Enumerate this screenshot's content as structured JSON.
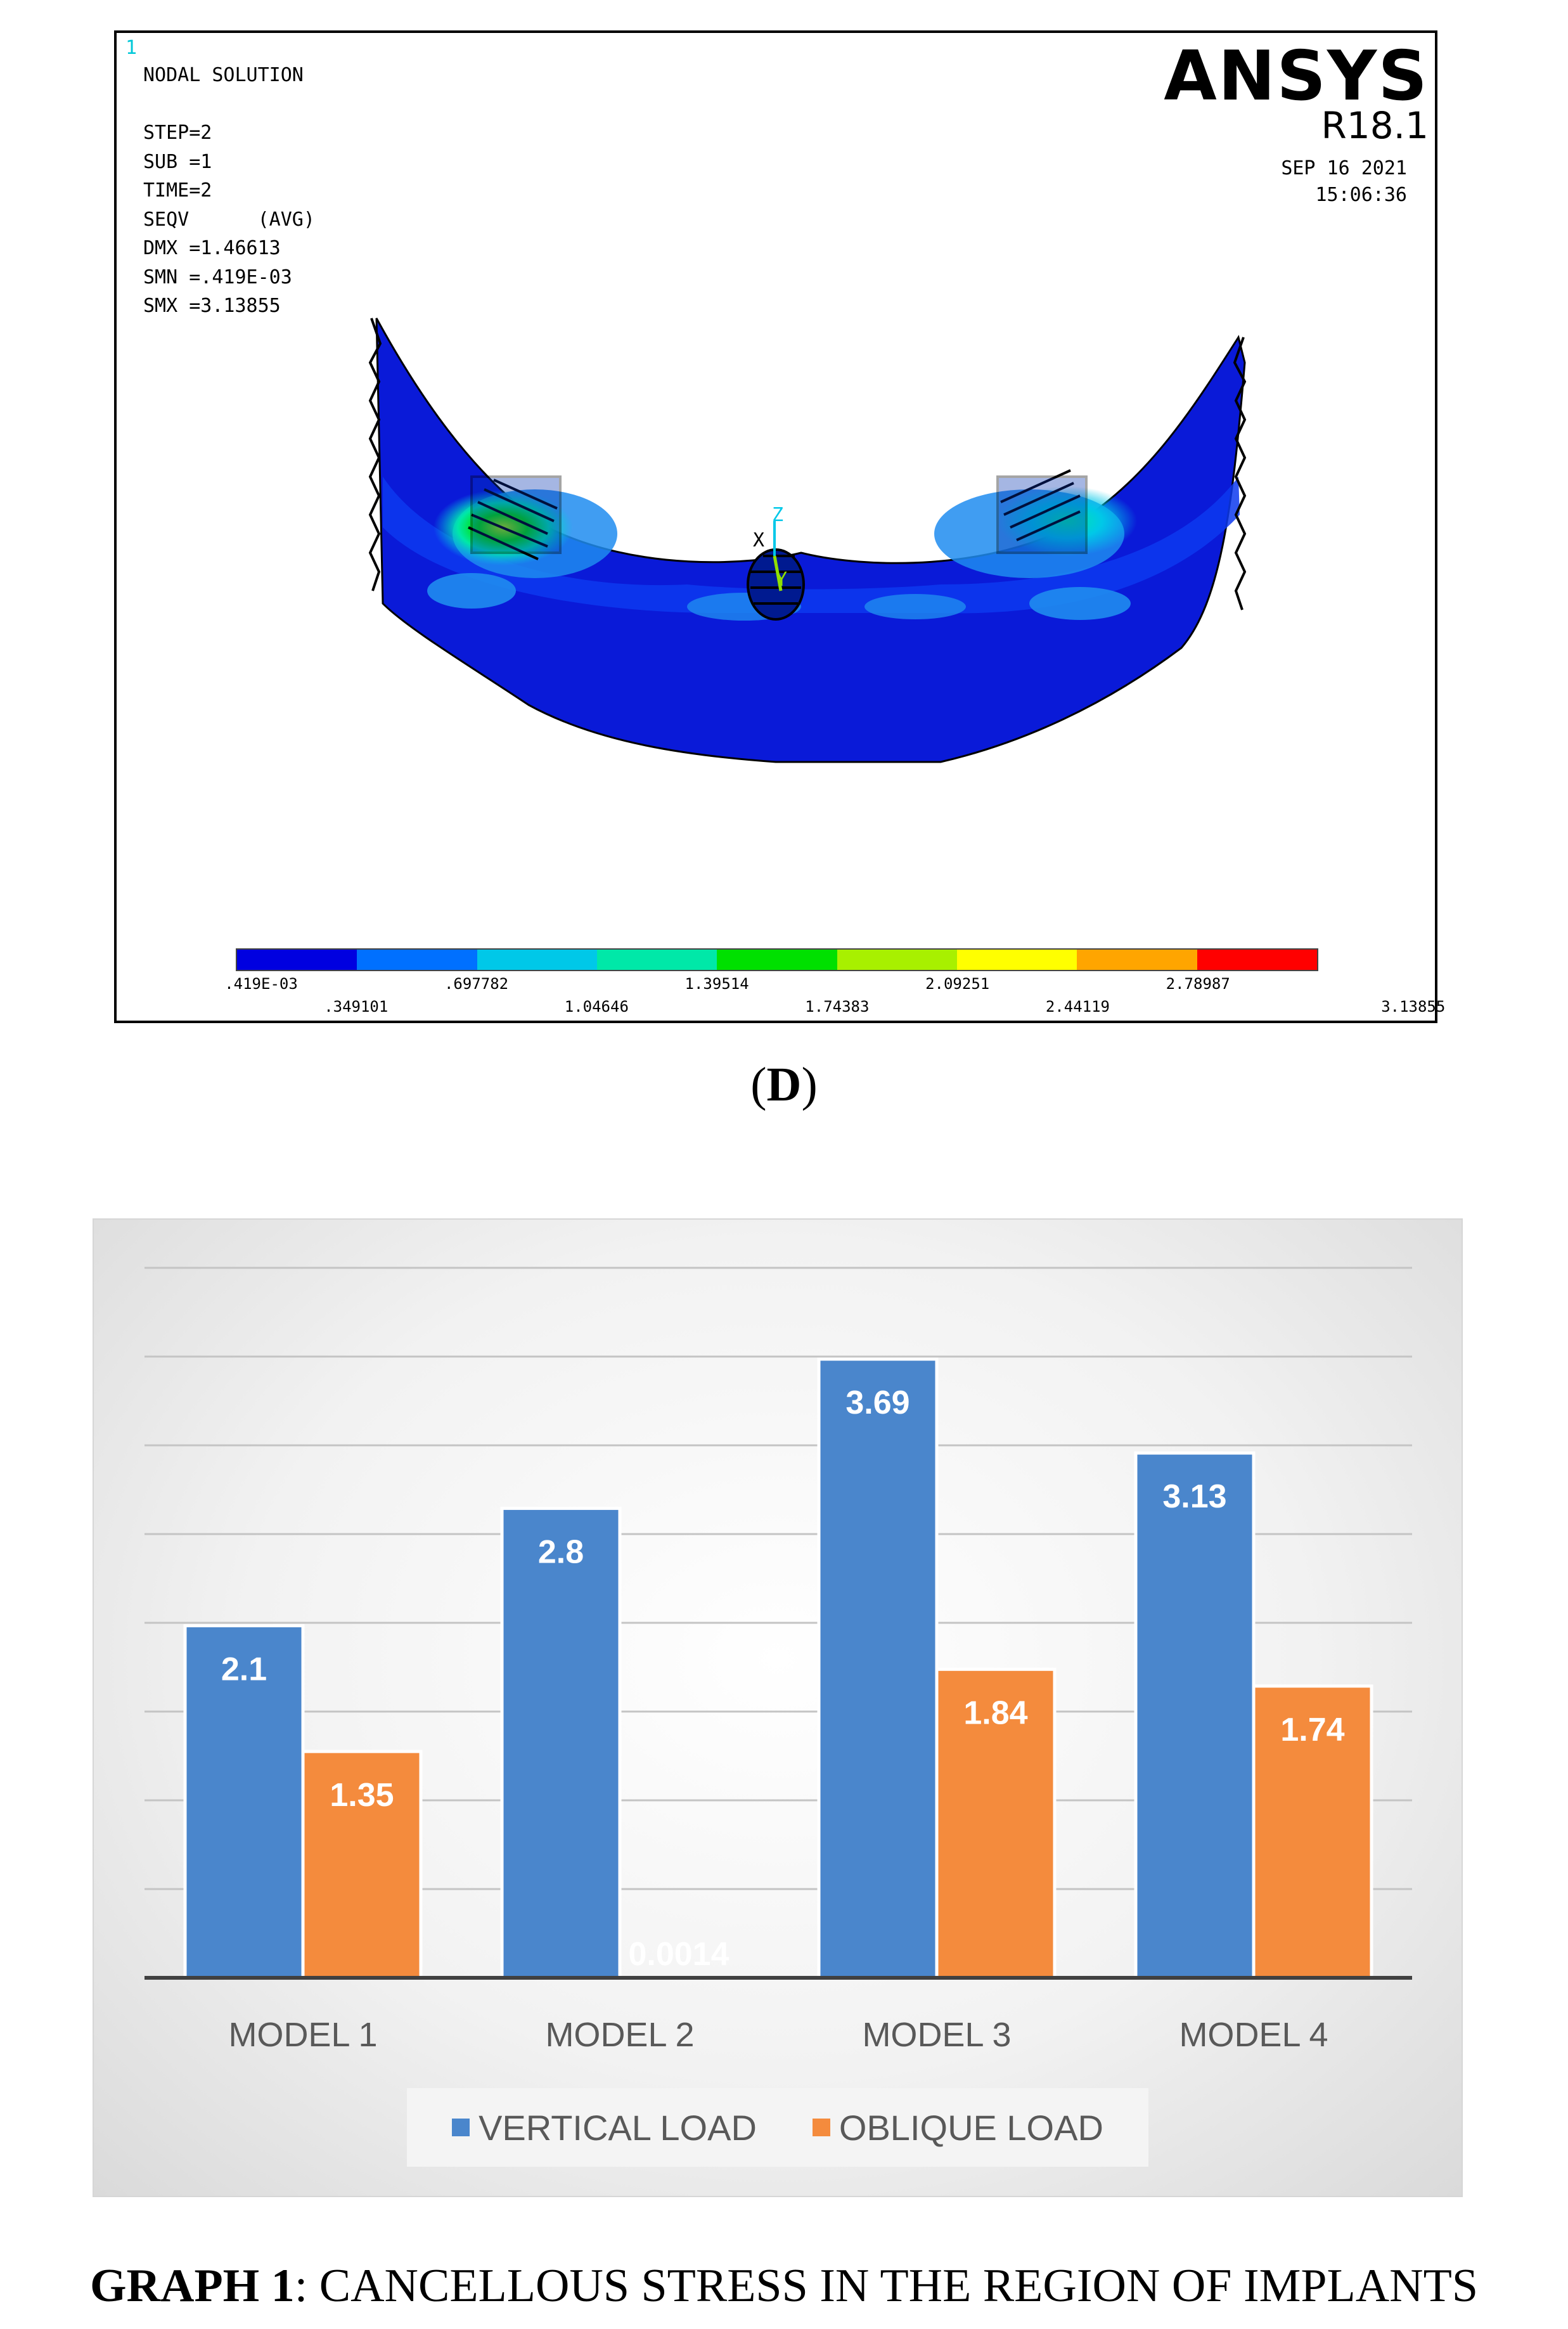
{
  "ansys": {
    "window_number": "1",
    "info_lines": [
      "NODAL SOLUTION",
      "",
      "STEP=2",
      "SUB =1",
      "TIME=2",
      "SEQV      (AVG)",
      "DMX =1.46613",
      "SMN =.419E-03",
      "SMX =3.13855"
    ],
    "brand": "ANSYS",
    "version": "R18.1",
    "date": "SEP 16 2021",
    "time": "15:06:36",
    "axis_labels": {
      "x": "X",
      "y": "Y",
      "z": "Z"
    },
    "legend_colors": [
      "#0000e0",
      "#0070ff",
      "#00c8e8",
      "#00e8a8",
      "#00e000",
      "#a8f000",
      "#ffff00",
      "#ffa500",
      "#ff0000"
    ],
    "legend_values_top": [
      ".419E-03",
      ".697782",
      "1.39514",
      "2.09251",
      "2.78987"
    ],
    "legend_values_bottom": [
      ".349101",
      "1.04646",
      "1.74383",
      "2.44119",
      "3.13855"
    ]
  },
  "panel_label": {
    "open": "(",
    "letter": "D",
    "close": ")"
  },
  "chart_data": {
    "type": "bar",
    "categories": [
      "MODEL 1",
      "MODEL 2",
      "MODEL 3",
      "MODEL 4"
    ],
    "series": [
      {
        "name": "VERTICAL LOAD",
        "values": [
          2.1,
          2.8,
          3.69,
          3.13
        ],
        "labels": [
          "2.1",
          "2.8",
          "3.69",
          "3.13"
        ],
        "color": "#4a86cc"
      },
      {
        "name": "OBLIQUE LOAD",
        "values": [
          1.35,
          0.0014,
          1.84,
          1.74
        ],
        "labels": [
          "1.35",
          "0.0014",
          "1.84",
          "1.74"
        ],
        "color": "#f48b3d"
      }
    ],
    "ylim": [
      0,
      4.0
    ],
    "grid": true,
    "legend_position": "bottom"
  },
  "caption": {
    "bold": "GRAPH 1",
    "text": ": CANCELLOUS STRESS IN THE REGION OF IMPLANTS"
  }
}
